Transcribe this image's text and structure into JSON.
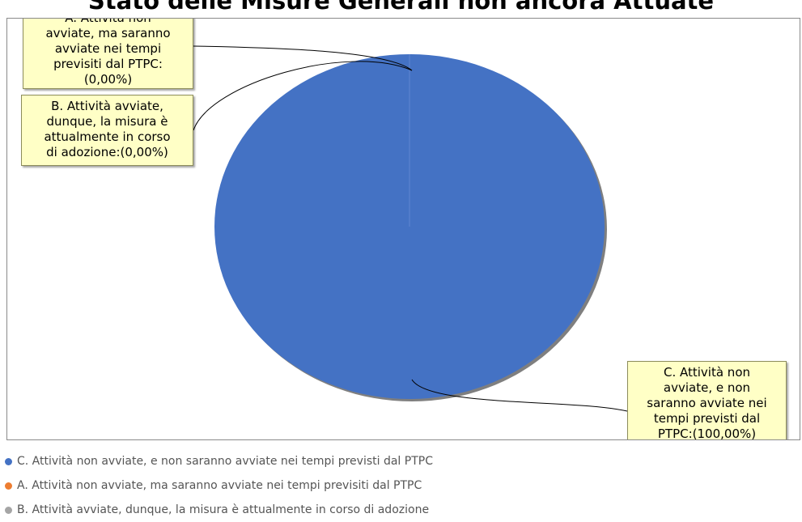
{
  "chart_data": {
    "type": "pie",
    "title": "Stato delle Misure Generali non ancora Attuate",
    "categories": [
      "C. Attività non avviate, e non saranno avviate nei tempi previsti dal PTPC",
      "A. Attività non avviate, ma saranno avviate nei tempi previsiti dal PTPC",
      "B. Attività avviate, dunque, la misura è attualmente in corso di adozione"
    ],
    "values": [
      100,
      0,
      0
    ],
    "colors": [
      "#4472c4",
      "#ed7d31",
      "#a5a5a5"
    ],
    "legend_position": "bottom-left"
  },
  "callouts": {
    "a_lines": [
      "A. Attività non",
      "avviate, ma saranno",
      "avviate nei tempi",
      "previsiti dal PTPC:",
      "(0,00%)"
    ],
    "b_lines": [
      "B. Attività avviate,",
      "dunque, la misura è",
      "attualmente in corso",
      "di adozione:(0,00%)"
    ],
    "c_lines": [
      "C. Attività non",
      "avviate, e non",
      "saranno avviate nei",
      "tempi previsti dal",
      "PTPC:(100,00%)"
    ]
  },
  "legend": [
    {
      "label": "C. Attività non avviate, e non saranno avviate nei tempi previsti dal PTPC",
      "color": "#4472c4"
    },
    {
      "label": "A. Attività non avviate, ma saranno avviate nei tempi previsiti dal PTPC",
      "color": "#ed7d31"
    },
    {
      "label": "B. Attività avviate, dunque, la misura è attualmente in corso di adozione",
      "color": "#a5a5a5"
    }
  ]
}
